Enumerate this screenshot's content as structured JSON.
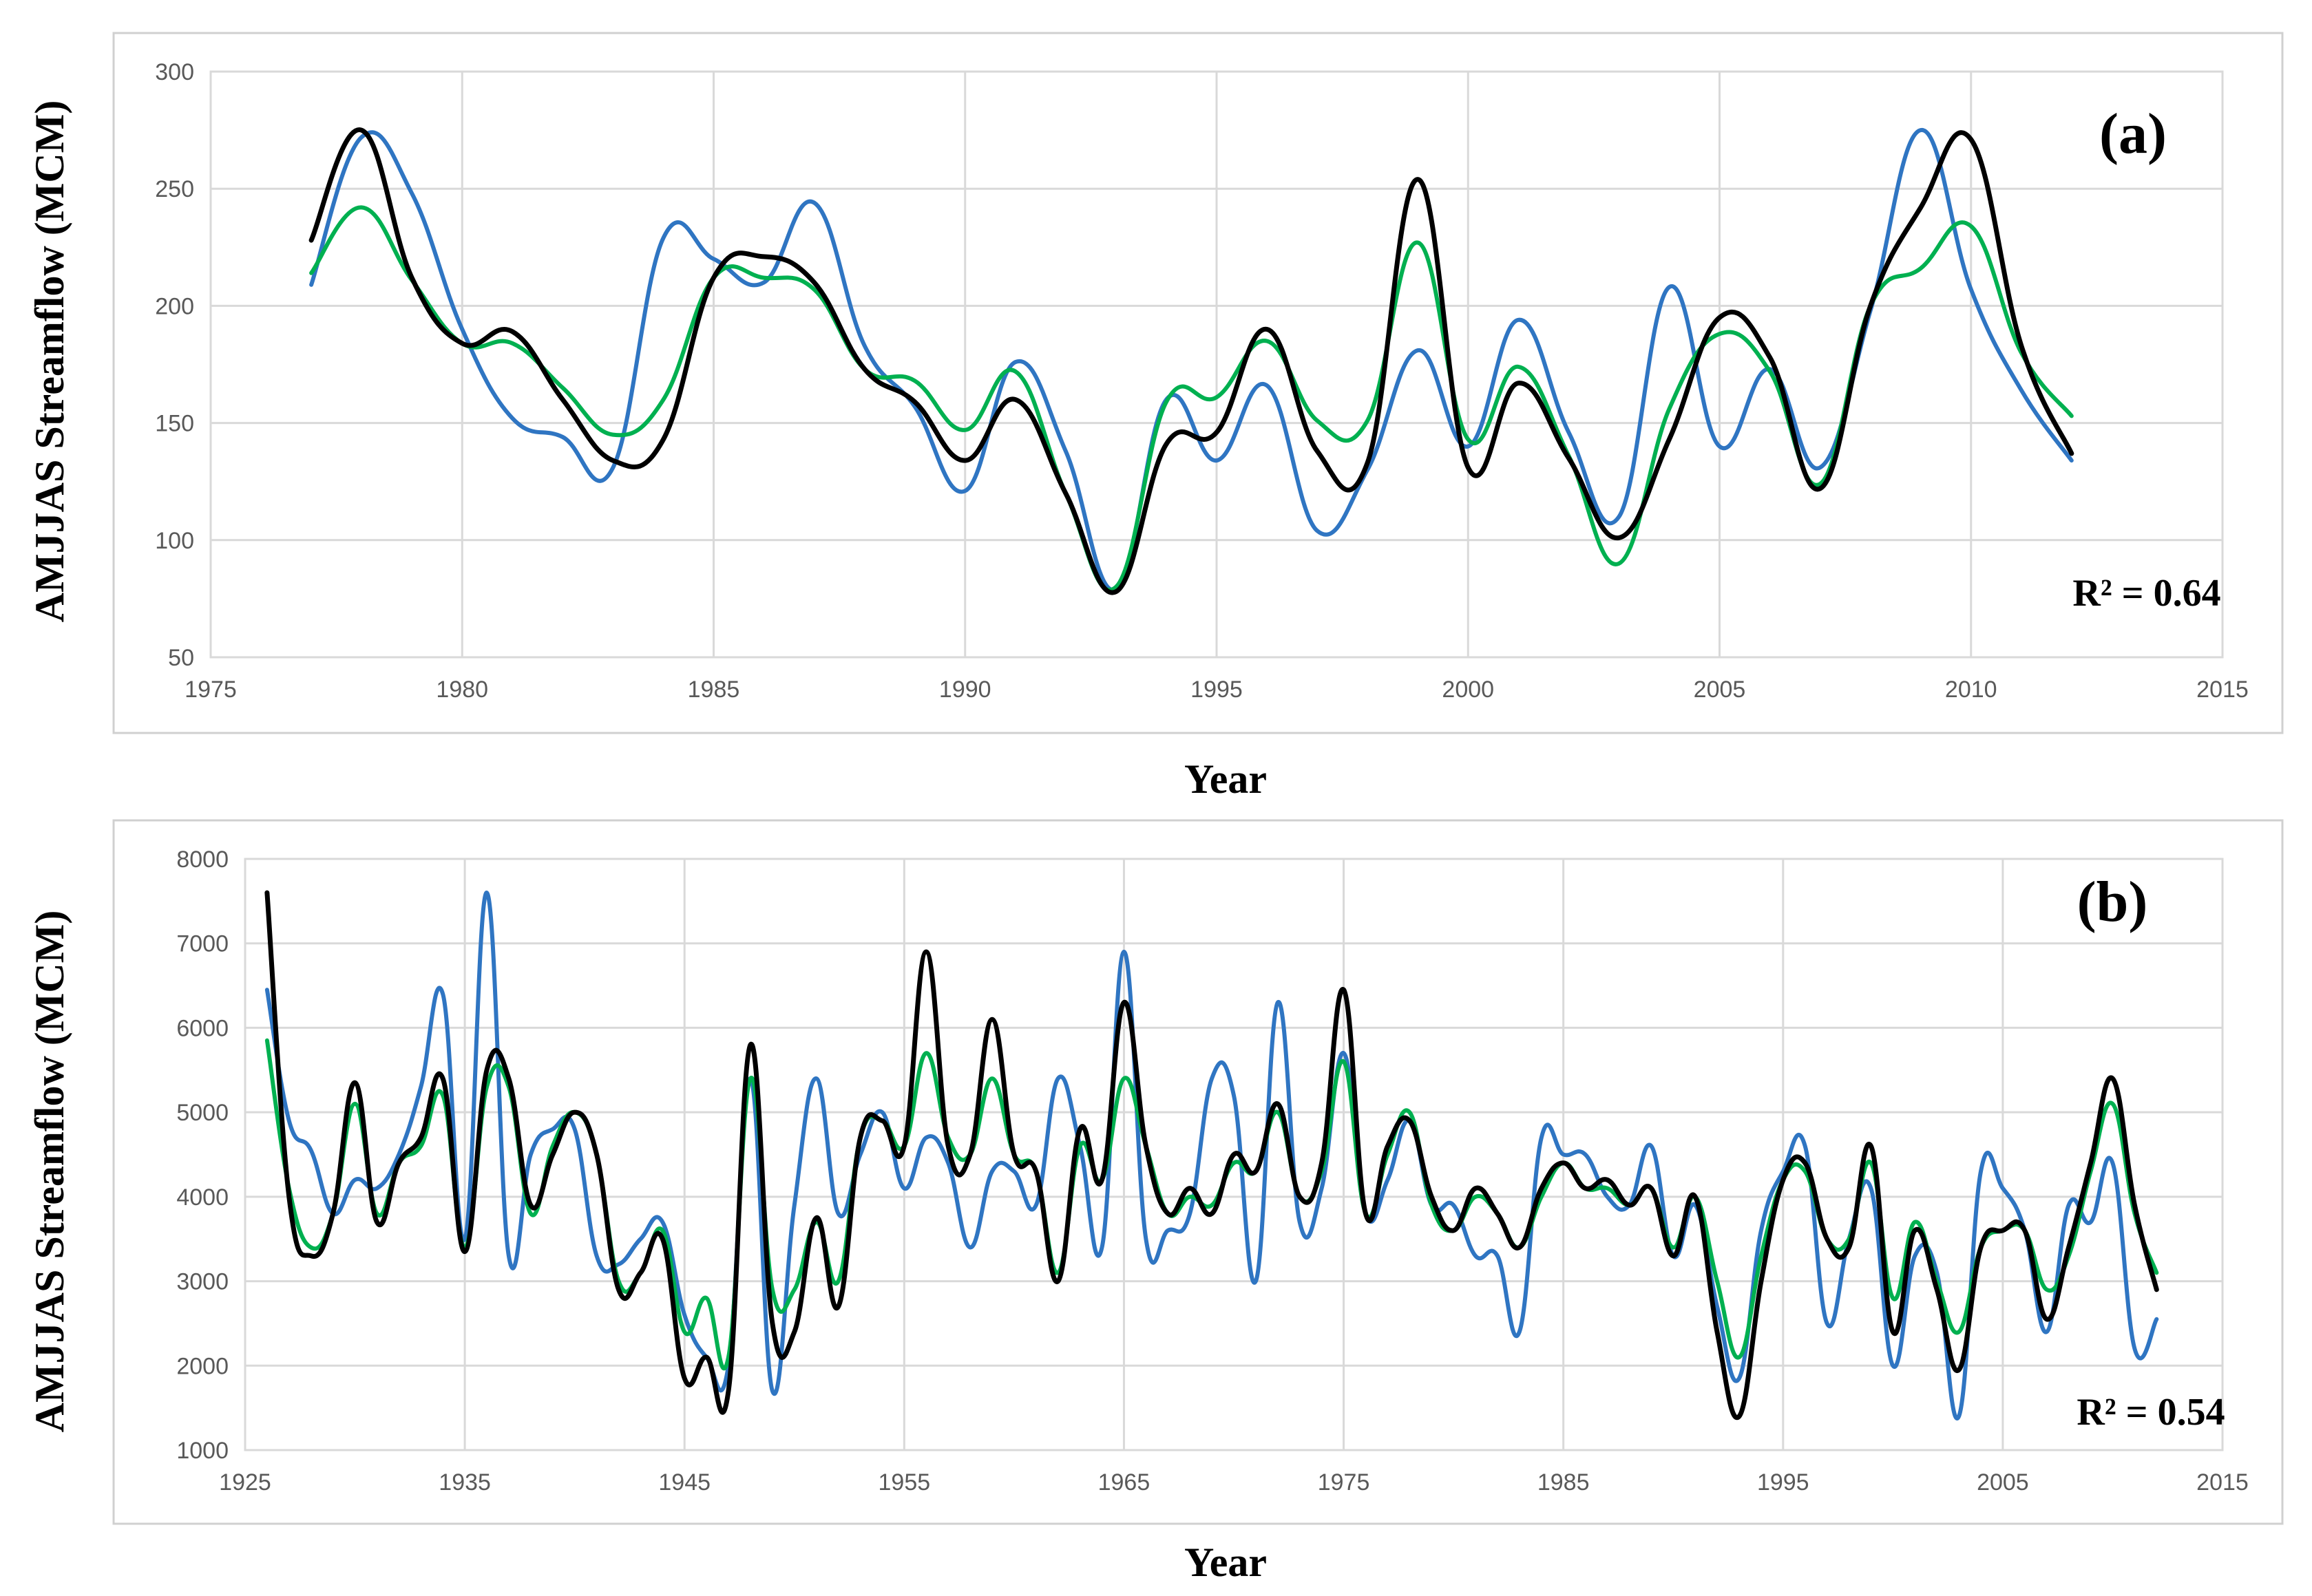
{
  "chart_data": [
    {
      "type": "line",
      "panel_label": "(a)",
      "annotation": "R² = 0.64",
      "xlabel": "Year",
      "ylabel": "AMJJAS Streamflow (MCM)",
      "xlim": [
        1975,
        2015
      ],
      "ylim": [
        50,
        300
      ],
      "xticks": [
        1975,
        1980,
        1985,
        1990,
        1995,
        2000,
        2005,
        2010,
        2015
      ],
      "yticks": [
        50,
        100,
        150,
        200,
        250,
        300
      ],
      "grid": true,
      "x": [
        1977,
        1978,
        1979,
        1980,
        1981,
        1982,
        1983,
        1984,
        1985,
        1986,
        1987,
        1988,
        1989,
        1990,
        1991,
        1992,
        1993,
        1994,
        1995,
        1996,
        1997,
        1998,
        1999,
        2000,
        2001,
        2002,
        2003,
        2004,
        2005,
        2006,
        2007,
        2008,
        2009,
        2010,
        2011,
        2012
      ],
      "series": [
        {
          "name": "blue",
          "color": "#2f75c2",
          "values": [
            209,
            272,
            248,
            190,
            152,
            144,
            131,
            229,
            220,
            210,
            244,
            183,
            157,
            121,
            176,
            138,
            79,
            160,
            134,
            166,
            104,
            130,
            181,
            140,
            194,
            146,
            110,
            208,
            140,
            173,
            131,
            198,
            275,
            207,
            164,
            134
          ]
        },
        {
          "name": "green",
          "color": "#00b050",
          "values": [
            214,
            242,
            211,
            184,
            184,
            165,
            145,
            160,
            212,
            212,
            207,
            173,
            168,
            147,
            172,
            120,
            80,
            159,
            161,
            185,
            151,
            151,
            227,
            143,
            174,
            136,
            90,
            156,
            188,
            172,
            124,
            200,
            216,
            234,
            180,
            153
          ]
        },
        {
          "name": "black",
          "color": "#000000",
          "values": [
            228,
            275,
            212,
            184,
            189,
            160,
            134,
            143,
            212,
            221,
            210,
            173,
            159,
            134,
            160,
            120,
            78,
            141,
            146,
            190,
            138,
            133,
            254,
            131,
            167,
            135,
            101,
            143,
            195,
            178,
            122,
            200,
            242,
            271,
            183,
            137
          ]
        }
      ]
    },
    {
      "type": "line",
      "panel_label": "(b)",
      "annotation": "R² = 0.54",
      "xlabel": "Year",
      "ylabel": "AMJJAS Streamflow (MCM)",
      "xlim": [
        1925,
        2015
      ],
      "ylim": [
        1000,
        8000
      ],
      "xticks": [
        1925,
        1935,
        1945,
        1955,
        1965,
        1975,
        1985,
        1995,
        2005,
        2015
      ],
      "yticks": [
        1000,
        2000,
        3000,
        4000,
        5000,
        6000,
        7000,
        8000
      ],
      "grid": true,
      "x": [
        1926,
        1927,
        1928,
        1929,
        1930,
        1931,
        1932,
        1933,
        1934,
        1935,
        1936,
        1937,
        1938,
        1939,
        1940,
        1941,
        1942,
        1943,
        1944,
        1945,
        1946,
        1947,
        1948,
        1949,
        1950,
        1951,
        1952,
        1953,
        1954,
        1955,
        1956,
        1957,
        1958,
        1959,
        1960,
        1961,
        1962,
        1963,
        1964,
        1965,
        1966,
        1967,
        1968,
        1969,
        1970,
        1971,
        1972,
        1973,
        1974,
        1975,
        1976,
        1977,
        1978,
        1979,
        1980,
        1981,
        1982,
        1983,
        1984,
        1985,
        1986,
        1987,
        1988,
        1989,
        1990,
        1991,
        1992,
        1993,
        1994,
        1995,
        1996,
        1997,
        1998,
        1999,
        2000,
        2001,
        2002,
        2003,
        2004,
        2005,
        2006,
        2007,
        2008,
        2009,
        2010,
        2011,
        2012
      ],
      "series": [
        {
          "name": "blue",
          "color": "#2f75c2",
          "values": [
            6450,
            4900,
            4550,
            3800,
            4200,
            4100,
            4500,
            5300,
            6400,
            3500,
            7600,
            3300,
            4500,
            4800,
            4800,
            3300,
            3200,
            3500,
            3700,
            2600,
            2100,
            2000,
            5400,
            1700,
            3900,
            5400,
            3800,
            4500,
            5000,
            4100,
            4700,
            4400,
            3400,
            4300,
            4300,
            3900,
            5400,
            4600,
            3400,
            6900,
            3500,
            3600,
            3800,
            5400,
            5200,
            3000,
            6300,
            3700,
            4100,
            5700,
            3800,
            4200,
            4900,
            3900,
            3900,
            3300,
            3300,
            2400,
            4700,
            4500,
            4500,
            4000,
            3900,
            4600,
            3300,
            3900,
            2700,
            1850,
            3600,
            4300,
            4600,
            2500,
            3500,
            4100,
            2000,
            3300,
            3100,
            1400,
            4300,
            4100,
            3600,
            2400,
            3900,
            3700,
            4400,
            2200,
            2550
          ]
        },
        {
          "name": "green",
          "color": "#00b050",
          "values": [
            5850,
            4100,
            3400,
            3800,
            5100,
            3800,
            4400,
            4600,
            5200,
            3400,
            5300,
            5300,
            3800,
            4600,
            5000,
            4500,
            3000,
            3100,
            3600,
            2400,
            2800,
            2100,
            5400,
            2900,
            2900,
            3700,
            3000,
            4700,
            4900,
            4600,
            5700,
            4700,
            4500,
            5400,
            4500,
            4300,
            3100,
            4600,
            4200,
            5400,
            4600,
            3800,
            4000,
            3900,
            4400,
            4300,
            5000,
            4000,
            4300,
            5600,
            3800,
            4500,
            5000,
            3900,
            3600,
            4000,
            3800,
            3400,
            4000,
            4400,
            4100,
            4100,
            3900,
            4100,
            3400,
            4000,
            3000,
            2100,
            3300,
            4200,
            4300,
            3500,
            3500,
            4400,
            2800,
            3700,
            3000,
            2400,
            3400,
            3600,
            3600,
            2900,
            3300,
            4300,
            5100,
            3800,
            3100
          ]
        },
        {
          "name": "black",
          "color": "#000000",
          "values": [
            7600,
            4000,
            3300,
            3800,
            5350,
            3700,
            4400,
            4700,
            5400,
            3350,
            5500,
            5400,
            3900,
            4500,
            5000,
            4500,
            2900,
            3100,
            3500,
            1850,
            2100,
            1700,
            5800,
            2500,
            2400,
            3750,
            2700,
            4700,
            4900,
            4600,
            6900,
            4600,
            4500,
            6100,
            4500,
            4300,
            3000,
            4800,
            4200,
            6300,
            4600,
            3800,
            4100,
            3800,
            4500,
            4300,
            5100,
            4000,
            4400,
            6450,
            3800,
            4600,
            4900,
            4000,
            3600,
            4100,
            3800,
            3400,
            4100,
            4400,
            4100,
            4200,
            3900,
            4100,
            3300,
            4000,
            2400,
            1400,
            3000,
            4200,
            4400,
            3500,
            3400,
            4600,
            2400,
            3600,
            2900,
            1950,
            3400,
            3600,
            3600,
            2550,
            3400,
            4400,
            5400,
            3900,
            2900
          ]
        }
      ]
    }
  ]
}
